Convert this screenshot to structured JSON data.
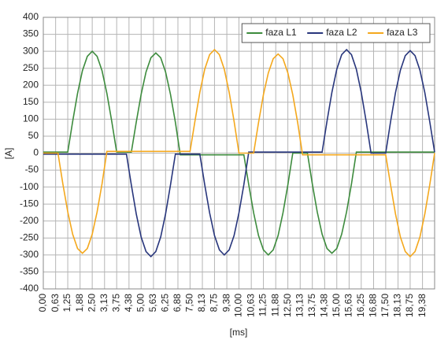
{
  "chart_data": {
    "type": "line",
    "ylabel": "[A]",
    "xlabel": "[ms]",
    "xlim": [
      0,
      20
    ],
    "ylim": [
      -400,
      400
    ],
    "yticks": [
      -400,
      -350,
      -300,
      -250,
      -200,
      -150,
      -100,
      -50,
      0,
      50,
      100,
      150,
      200,
      250,
      300,
      350,
      400
    ],
    "xticks": [
      {
        "value": 0,
        "label": "0,00"
      },
      {
        "value": 0.63,
        "label": "0,63"
      },
      {
        "value": 1.25,
        "label": "1,25"
      },
      {
        "value": 1.88,
        "label": "1,88"
      },
      {
        "value": 2.5,
        "label": "2,50"
      },
      {
        "value": 3.13,
        "label": "3,13"
      },
      {
        "value": 3.75,
        "label": "3,75"
      },
      {
        "value": 4.38,
        "label": "4,38"
      },
      {
        "value": 5,
        "label": "5,00"
      },
      {
        "value": 5.63,
        "label": "5,63"
      },
      {
        "value": 6.25,
        "label": "6,25"
      },
      {
        "value": 6.88,
        "label": "6,88"
      },
      {
        "value": 7.5,
        "label": "7,50"
      },
      {
        "value": 8.13,
        "label": "8,13"
      },
      {
        "value": 8.75,
        "label": "8,75"
      },
      {
        "value": 9.38,
        "label": "9,38"
      },
      {
        "value": 10,
        "label": "10,00"
      },
      {
        "value": 10.63,
        "label": "10,63"
      },
      {
        "value": 11.25,
        "label": "11,25"
      },
      {
        "value": 11.88,
        "label": "11,88"
      },
      {
        "value": 12.5,
        "label": "12,50"
      },
      {
        "value": 13.13,
        "label": "13,13"
      },
      {
        "value": 13.75,
        "label": "13,75"
      },
      {
        "value": 14.38,
        "label": "14,38"
      },
      {
        "value": 15,
        "label": "15,00"
      },
      {
        "value": 15.63,
        "label": "15,63"
      },
      {
        "value": 16.25,
        "label": "16,25"
      },
      {
        "value": 16.88,
        "label": "16,88"
      },
      {
        "value": 17.5,
        "label": "17,50"
      },
      {
        "value": 18.13,
        "label": "18,13"
      },
      {
        "value": 18.75,
        "label": "18,75"
      },
      {
        "value": 19.38,
        "label": "19,38"
      }
    ],
    "grid": true,
    "legend": "top-right",
    "x": [
      0,
      0.25,
      0.5,
      0.75,
      1,
      1.25,
      1.5,
      1.75,
      2,
      2.25,
      2.5,
      2.75,
      3,
      3.25,
      3.5,
      3.75,
      4,
      4.25,
      4.5,
      4.75,
      5,
      5.25,
      5.5,
      5.75,
      6,
      6.25,
      6.5,
      6.75,
      7,
      7.25,
      7.5,
      7.75,
      8,
      8.25,
      8.5,
      8.75,
      9,
      9.25,
      9.5,
      9.75,
      10,
      10.25,
      10.5,
      10.75,
      11,
      11.25,
      11.5,
      11.75,
      12,
      12.25,
      12.5,
      12.75,
      13,
      13.25,
      13.5,
      13.75,
      14,
      14.25,
      14.5,
      14.75,
      15,
      15.25,
      15.5,
      15.75,
      16,
      16.25,
      16.5,
      16.75,
      17,
      17.25,
      17.5,
      17.75,
      18,
      18.25,
      18.5,
      18.75,
      19,
      19.25,
      19.5,
      19.75,
      20
    ],
    "series": [
      {
        "name": "faza L1",
        "color": "#3d8b3d",
        "values": [
          3,
          3,
          3,
          3,
          3,
          3,
          93,
          176,
          243,
          285,
          300,
          285,
          243,
          176,
          93,
          3,
          3,
          3,
          3,
          91,
          173,
          239,
          281,
          295,
          281,
          239,
          173,
          91,
          -5,
          -5,
          -5,
          -5,
          -5,
          -5,
          -5,
          -5,
          -5,
          -5,
          -5,
          -5,
          -5,
          -5,
          -93,
          -176,
          -243,
          -285,
          -300,
          -285,
          -243,
          -176,
          -93,
          0,
          0,
          0,
          0,
          -91,
          -173,
          -239,
          -281,
          -295,
          -281,
          -239,
          -173,
          -91,
          3,
          3,
          3,
          3,
          3,
          3,
          3,
          3,
          3,
          3,
          3,
          3,
          3,
          3,
          3,
          3,
          3
        ]
      },
      {
        "name": "faza L2",
        "color": "#28367c",
        "values": [
          -3,
          -3,
          -3,
          -3,
          -3,
          -3,
          -3,
          -3,
          -3,
          -3,
          -3,
          -3,
          -3,
          -3,
          -3,
          -3,
          -3,
          -3,
          -94,
          -179,
          -247,
          -290,
          -305,
          -290,
          -247,
          -179,
          -94,
          -3,
          -3,
          -3,
          -3,
          -3,
          -3,
          -93,
          -176,
          -243,
          -285,
          -300,
          -285,
          -243,
          -176,
          -93,
          3,
          3,
          3,
          3,
          3,
          3,
          3,
          3,
          3,
          3,
          3,
          3,
          3,
          3,
          3,
          3,
          94,
          179,
          247,
          290,
          305,
          290,
          247,
          179,
          94,
          0,
          0,
          0,
          0,
          93,
          178,
          244,
          287,
          302,
          287,
          244,
          178,
          93,
          3
        ]
      },
      {
        "name": "faza L3",
        "color": "#f4a81d",
        "values": [
          0,
          0,
          0,
          0,
          -91,
          -173,
          -239,
          -281,
          -295,
          -281,
          -239,
          -173,
          -91,
          5,
          5,
          5,
          5,
          5,
          5,
          5,
          5,
          5,
          5,
          5,
          5,
          5,
          5,
          5,
          5,
          5,
          5,
          94,
          179,
          247,
          290,
          305,
          290,
          247,
          179,
          94,
          0,
          0,
          0,
          0,
          90,
          172,
          236,
          278,
          292,
          278,
          236,
          172,
          90,
          -5,
          -5,
          -5,
          -5,
          -5,
          -5,
          -5,
          -5,
          -5,
          -5,
          -5,
          -5,
          -5,
          -5,
          -5,
          -5,
          -5,
          -5,
          -94,
          -179,
          -247,
          -290,
          -305,
          -290,
          -247,
          -179,
          -94,
          0
        ]
      }
    ]
  }
}
